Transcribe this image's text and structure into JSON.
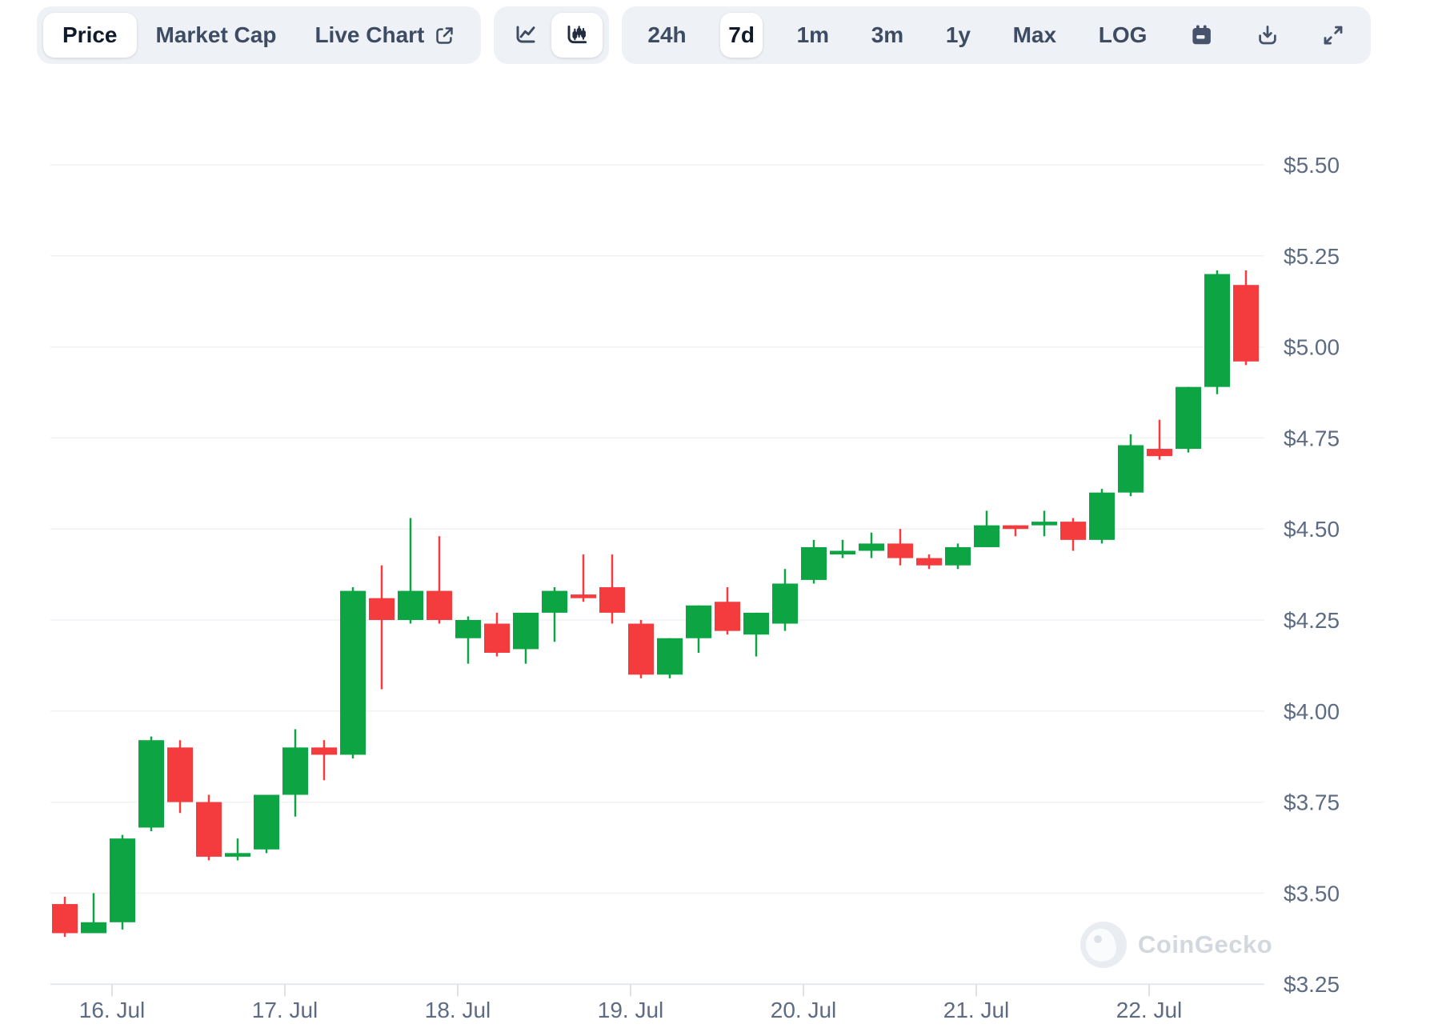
{
  "toolbar": {
    "metric_tabs": [
      {
        "label": "Price",
        "selected": true
      },
      {
        "label": "Market Cap",
        "selected": false
      },
      {
        "label": "Live Chart",
        "selected": false,
        "icon": "external-link"
      }
    ],
    "chart_type_buttons": [
      {
        "name": "line-chart",
        "selected": false
      },
      {
        "name": "candlestick-chart",
        "selected": true
      }
    ],
    "range_buttons": [
      {
        "label": "24h",
        "selected": false
      },
      {
        "label": "7d",
        "selected": true
      },
      {
        "label": "1m",
        "selected": false
      },
      {
        "label": "3m",
        "selected": false
      },
      {
        "label": "1y",
        "selected": false
      },
      {
        "label": "Max",
        "selected": false
      },
      {
        "label": "LOG",
        "selected": false
      }
    ],
    "icon_buttons": [
      "calendar",
      "download",
      "fullscreen"
    ]
  },
  "watermark": {
    "text": "CoinGecko"
  },
  "chart_data": {
    "type": "candlestick",
    "unit": "USD",
    "selected_range": "7d",
    "grid": "horizontal",
    "legend": "none",
    "y_axis": {
      "max": 5.5,
      "min": 3.25,
      "step": 0.25,
      "tick_labels": [
        "$5.50",
        "$5.25",
        "$5.00",
        "$4.75",
        "$4.50",
        "$4.25",
        "$4.00",
        "$3.75",
        "$3.50",
        "$3.25"
      ]
    },
    "x_axis": {
      "tick_labels": [
        "16. Jul",
        "17. Jul",
        "18. Jul",
        "19. Jul",
        "20. Jul",
        "21. Jul",
        "22. Jul"
      ]
    },
    "candles_per_day": 6,
    "ohlc_order": [
      "open",
      "high",
      "low",
      "close"
    ],
    "ohlc": [
      [
        3.47,
        3.49,
        3.38,
        3.39
      ],
      [
        3.39,
        3.5,
        3.39,
        3.42
      ],
      [
        3.42,
        3.66,
        3.4,
        3.65
      ],
      [
        3.68,
        3.93,
        3.67,
        3.92
      ],
      [
        3.9,
        3.92,
        3.72,
        3.75
      ],
      [
        3.75,
        3.77,
        3.59,
        3.6
      ],
      [
        3.6,
        3.65,
        3.59,
        3.61
      ],
      [
        3.62,
        3.77,
        3.61,
        3.77
      ],
      [
        3.77,
        3.95,
        3.71,
        3.9
      ],
      [
        3.9,
        3.92,
        3.81,
        3.88
      ],
      [
        3.88,
        4.34,
        3.87,
        4.33
      ],
      [
        4.31,
        4.4,
        4.06,
        4.25
      ],
      [
        4.25,
        4.53,
        4.24,
        4.33
      ],
      [
        4.33,
        4.48,
        4.24,
        4.25
      ],
      [
        4.2,
        4.26,
        4.13,
        4.25
      ],
      [
        4.24,
        4.27,
        4.15,
        4.16
      ],
      [
        4.17,
        4.27,
        4.13,
        4.27
      ],
      [
        4.27,
        4.34,
        4.19,
        4.33
      ],
      [
        4.32,
        4.43,
        4.3,
        4.31
      ],
      [
        4.34,
        4.43,
        4.24,
        4.27
      ],
      [
        4.24,
        4.25,
        4.09,
        4.1
      ],
      [
        4.1,
        4.2,
        4.09,
        4.2
      ],
      [
        4.2,
        4.29,
        4.16,
        4.29
      ],
      [
        4.3,
        4.34,
        4.21,
        4.22
      ],
      [
        4.21,
        4.27,
        4.15,
        4.27
      ],
      [
        4.24,
        4.39,
        4.22,
        4.35
      ],
      [
        4.36,
        4.47,
        4.35,
        4.45
      ],
      [
        4.43,
        4.47,
        4.42,
        4.44
      ],
      [
        4.44,
        4.49,
        4.42,
        4.46
      ],
      [
        4.46,
        4.5,
        4.4,
        4.42
      ],
      [
        4.42,
        4.43,
        4.39,
        4.4
      ],
      [
        4.4,
        4.46,
        4.39,
        4.45
      ],
      [
        4.45,
        4.55,
        4.45,
        4.51
      ],
      [
        4.51,
        4.51,
        4.48,
        4.5
      ],
      [
        4.51,
        4.55,
        4.48,
        4.52
      ],
      [
        4.52,
        4.53,
        4.44,
        4.47
      ],
      [
        4.47,
        4.61,
        4.46,
        4.6
      ],
      [
        4.6,
        4.76,
        4.59,
        4.73
      ],
      [
        4.72,
        4.8,
        4.69,
        4.7
      ],
      [
        4.72,
        4.89,
        4.71,
        4.89
      ],
      [
        4.89,
        5.21,
        4.87,
        5.2
      ],
      [
        5.17,
        5.21,
        4.95,
        4.96
      ]
    ],
    "colors": {
      "up": "#0da544",
      "down": "#f43b3e"
    }
  }
}
